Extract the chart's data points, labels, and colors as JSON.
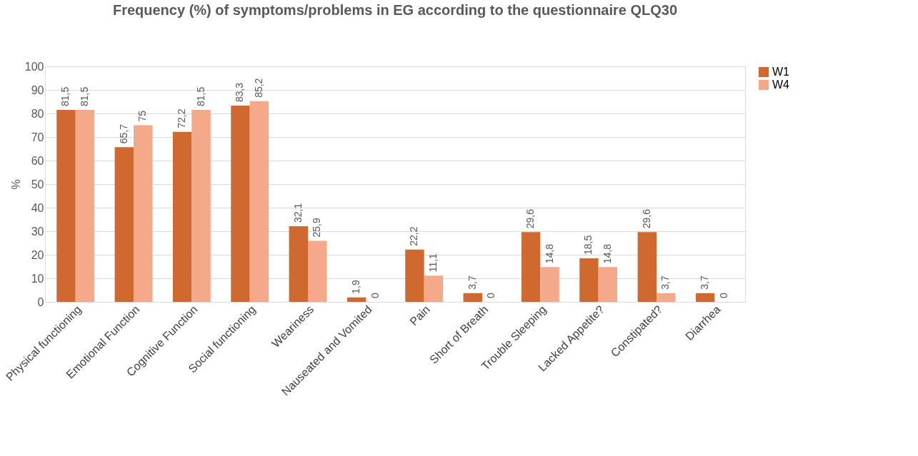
{
  "chart_data": {
    "type": "bar",
    "title": "Frequency (%) of symptoms/problems in EG according to the questionnaire QLQ30",
    "ylabel": "%",
    "categories": [
      "Physical functioning",
      "Emotional Function",
      "Cognitive Function",
      "Social functioning",
      "Weariness",
      "Nauseated and Vomited",
      "Pain",
      "Short of Breath",
      "Trouble Sleeping",
      "Lacked Appetite?",
      "Constipated?",
      "Diarrhea"
    ],
    "series": [
      {
        "name": "W1",
        "color": "#d0692f",
        "values": [
          81.5,
          65.7,
          72.2,
          83.3,
          32.1,
          1.9,
          22.2,
          3.7,
          29.6,
          18.5,
          29.6,
          3.7
        ],
        "value_labels": [
          "81,5",
          "65,7",
          "72,2",
          "83,3",
          "32,1",
          "1,9",
          "22,2",
          "3,7",
          "29,6",
          "18,5",
          "29,6",
          "3,7"
        ]
      },
      {
        "name": "W4",
        "color": "#f4a98a",
        "values": [
          81.5,
          75,
          81.5,
          85.2,
          25.9,
          0,
          11.1,
          0,
          14.8,
          14.8,
          3.7,
          0
        ],
        "value_labels": [
          "81,5",
          "75",
          "81,5",
          "85,2",
          "25,9",
          "0",
          "11,1",
          "0",
          "14,8",
          "14,8",
          "3,7",
          "0"
        ]
      }
    ],
    "ylim": [
      0,
      100
    ],
    "yticks": [
      0,
      10,
      20,
      30,
      40,
      50,
      60,
      70,
      80,
      90,
      100
    ],
    "grid": "y",
    "legend": "right"
  }
}
